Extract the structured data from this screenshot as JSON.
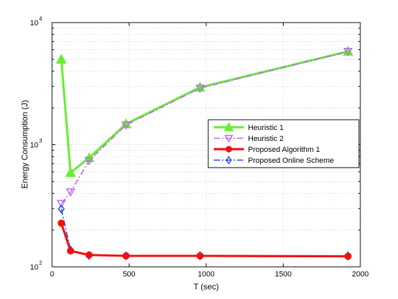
{
  "chart_data": {
    "type": "line",
    "title": "",
    "xlabel": "T (sec)",
    "ylabel": "Energy Consumption (J)",
    "xscale": "linear",
    "yscale": "log",
    "xlim": [
      0,
      2000
    ],
    "ylim": [
      100,
      10000
    ],
    "xticks": [
      0,
      500,
      1000,
      1500,
      2000
    ],
    "xtick_labels": [
      "0",
      "500",
      "1000",
      "1500",
      "2000"
    ],
    "yticks": [
      100,
      1000,
      10000
    ],
    "ytick_labels": [
      {
        "base": "10",
        "exp": "2"
      },
      {
        "base": "10",
        "exp": "3"
      },
      {
        "base": "10",
        "exp": "4"
      }
    ],
    "grid": true,
    "legend_position": "right",
    "series": [
      {
        "name": "Heuristic 1",
        "color": "#66ee33",
        "line_style": "solid",
        "marker": "triangle-up",
        "x": [
          60,
          120,
          240,
          480,
          960,
          1920
        ],
        "values": [
          5000,
          590,
          780,
          1480,
          2950,
          5800
        ]
      },
      {
        "name": "Heuristic 2",
        "color": "#bb66ee",
        "line_style": "dashdot",
        "marker": "triangle-down",
        "x": [
          60,
          120,
          240,
          480,
          960,
          1920
        ],
        "values": [
          330,
          410,
          740,
          1450,
          2900,
          5800
        ]
      },
      {
        "name": "Proposed Algorithm 1",
        "color": "#ee1111",
        "line_style": "solid",
        "marker": "circle",
        "x": [
          60,
          120,
          240,
          480,
          960,
          1920
        ],
        "values": [
          228,
          135,
          125,
          123,
          123,
          122
        ]
      },
      {
        "name": "Proposed Online Scheme",
        "color": "#2244ee",
        "line_style": "dashdot",
        "marker": "diamond",
        "x": [
          60,
          120,
          240,
          480,
          960,
          1920
        ],
        "values": [
          298,
          137,
          124,
          123,
          123,
          123
        ]
      }
    ]
  }
}
